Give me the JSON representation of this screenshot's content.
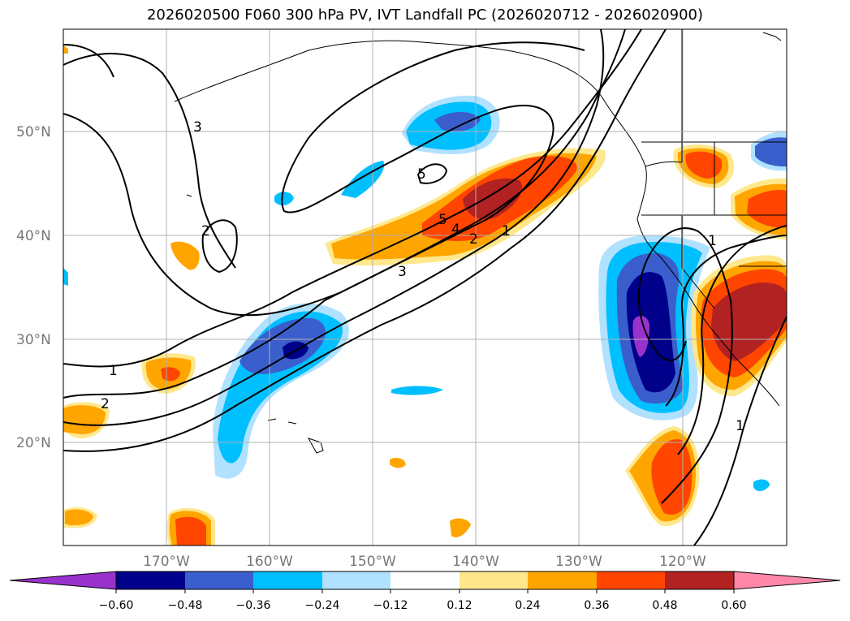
{
  "title": "2026020500 F060 300 hPa PV, IVT Landfall PC (2026020712 - 2026020900)",
  "map": {
    "lon_labels": [
      "170°W",
      "160°W",
      "150°W",
      "140°W",
      "130°W",
      "120°W"
    ],
    "lat_labels": [
      "50°N",
      "40°N",
      "30°N",
      "20°N"
    ],
    "contour_labels": [
      "1",
      "2",
      "3",
      "5",
      "4",
      "2",
      "1",
      "5",
      "2",
      "3",
      "1",
      "1"
    ]
  },
  "colorbar": {
    "ticks": [
      "−0.60",
      "−0.48",
      "−0.36",
      "−0.24",
      "−0.12",
      "0.12",
      "0.24",
      "0.36",
      "0.48",
      "0.60"
    ],
    "colors": [
      "#9932cc",
      "#00008b",
      "#3a5fcd",
      "#00bfff",
      "#b0e2ff",
      "#ffffff",
      "#ffe88c",
      "#ffa500",
      "#ff4500",
      "#b22222",
      "#ff88aa"
    ]
  }
}
